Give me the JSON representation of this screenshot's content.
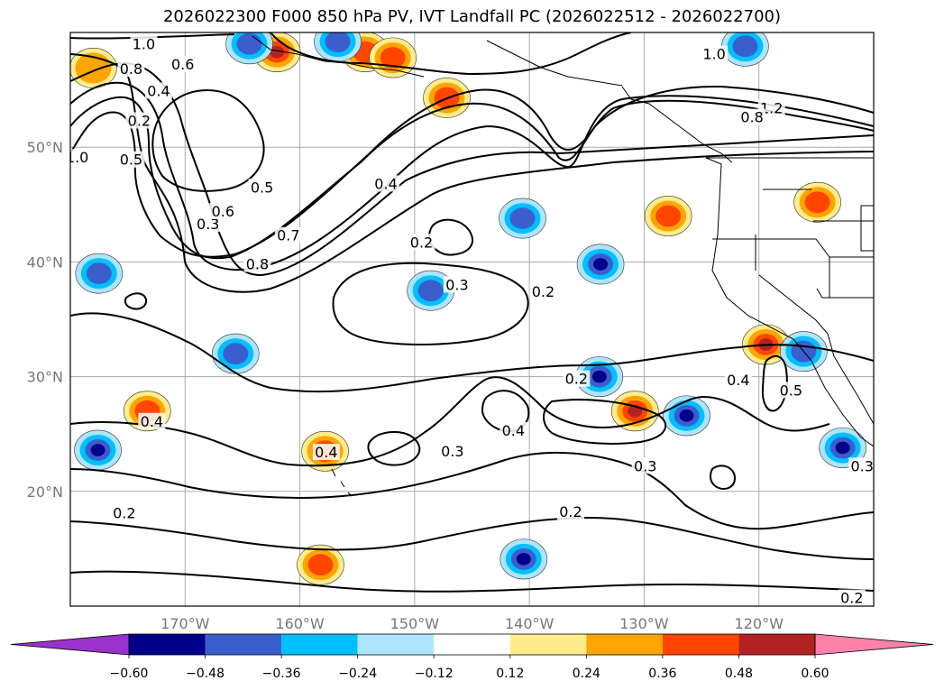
{
  "title": "2026022300 F000 850 hPa PV, IVT Landfall PC (2026022512 - 2026022700)",
  "map": {
    "projection": "PlateCarree",
    "extent_lon": [
      -180,
      -110
    ],
    "extent_lat": [
      10,
      60
    ],
    "lat_ticks": [
      {
        "value": 20,
        "label": "20°N"
      },
      {
        "value": 30,
        "label": "30°N"
      },
      {
        "value": 40,
        "label": "40°N"
      },
      {
        "value": 50,
        "label": "50°N"
      }
    ],
    "lon_ticks": [
      {
        "value": -170,
        "label": "170°W"
      },
      {
        "value": -160,
        "label": "160°W"
      },
      {
        "value": -150,
        "label": "150°W"
      },
      {
        "value": -140,
        "label": "140°W"
      },
      {
        "value": -130,
        "label": "130°W"
      },
      {
        "value": -120,
        "label": "120°W"
      }
    ],
    "gridlines": true,
    "gridline_color": "#aaaaaa",
    "contour_color": "#000000",
    "contour_labels": [
      {
        "text": "1.0",
        "lon": -173.6,
        "lat": 58.8
      },
      {
        "text": "0.8",
        "lon": -174.7,
        "lat": 56.6
      },
      {
        "text": "0.6",
        "lon": -170.2,
        "lat": 57.0
      },
      {
        "text": "0.4",
        "lon": -172.3,
        "lat": 54.7
      },
      {
        "text": "0.2",
        "lon": -174.0,
        "lat": 52.1
      },
      {
        "text": "0.5",
        "lon": -174.7,
        "lat": 48.7
      },
      {
        "text": "1.0",
        "lon": -179.4,
        "lat": 48.9
      },
      {
        "text": "0.3",
        "lon": -168.0,
        "lat": 43.1
      },
      {
        "text": "0.6",
        "lon": -166.7,
        "lat": 44.2
      },
      {
        "text": "0.5",
        "lon": -163.3,
        "lat": 46.3
      },
      {
        "text": "0.8",
        "lon": -163.7,
        "lat": 39.6
      },
      {
        "text": "0.7",
        "lon": -161.0,
        "lat": 42.1
      },
      {
        "text": "0.4",
        "lon": -152.5,
        "lat": 46.6
      },
      {
        "text": "0.2",
        "lon": -149.4,
        "lat": 41.5
      },
      {
        "text": "0.3",
        "lon": -146.3,
        "lat": 37.8
      },
      {
        "text": "0.2",
        "lon": -138.8,
        "lat": 37.2
      },
      {
        "text": "1.0",
        "lon": -123.9,
        "lat": 57.9
      },
      {
        "text": "1.2",
        "lon": -118.9,
        "lat": 53.2
      },
      {
        "text": "0.8",
        "lon": -120.6,
        "lat": 52.4
      },
      {
        "text": "0.2",
        "lon": -135.9,
        "lat": 29.6
      },
      {
        "text": "0.4",
        "lon": -141.4,
        "lat": 25.1
      },
      {
        "text": "0.3",
        "lon": -146.7,
        "lat": 23.3
      },
      {
        "text": "0.4",
        "lon": -157.7,
        "lat": 23.2
      },
      {
        "text": "0.4",
        "lon": -172.9,
        "lat": 25.9
      },
      {
        "text": "0.2",
        "lon": -175.3,
        "lat": 17.9
      },
      {
        "text": "0.3",
        "lon": -129.9,
        "lat": 22.0
      },
      {
        "text": "0.2",
        "lon": -136.4,
        "lat": 18.0
      },
      {
        "text": "0.4",
        "lon": -121.8,
        "lat": 29.5
      },
      {
        "text": "0.5",
        "lon": -117.2,
        "lat": 28.6
      },
      {
        "text": "0.3",
        "lon": -111.0,
        "lat": 22.0
      },
      {
        "text": "0.2",
        "lon": -111.9,
        "lat": 10.5
      }
    ]
  },
  "colorbar": {
    "ticks": [
      "−0.60",
      "−0.48",
      "−0.36",
      "−0.24",
      "−0.12",
      "0.12",
      "0.24",
      "0.36",
      "0.48",
      "0.60"
    ],
    "colors": [
      "#9932cc",
      "#00008b",
      "#3a5fcd",
      "#00bfff",
      "#ade5ff",
      "#ffffff",
      "#ffec8b",
      "#ffa500",
      "#ff4500",
      "#b22222",
      "#ff82ab"
    ],
    "extend": "both"
  },
  "chart_data": {
    "type": "heatmap",
    "title": "2026022300 F000 850 hPa PV, IVT Landfall PC (2026022512 - 2026022700)",
    "fields": [
      {
        "name": "850 hPa PV",
        "representation": "black contours",
        "levels": [
          0.2,
          0.3,
          0.4,
          0.5,
          0.6,
          0.7,
          0.8,
          1.0,
          1.2
        ]
      },
      {
        "name": "IVT Landfall PC",
        "representation": "filled shading",
        "levels": [
          -0.6,
          -0.48,
          -0.36,
          -0.24,
          -0.12,
          0.12,
          0.24,
          0.36,
          0.48,
          0.6
        ]
      }
    ],
    "x_range": [
      -180,
      -110
    ],
    "y_range": [
      10,
      60
    ],
    "shaded_features": [
      {
        "sign": "positive",
        "lon": -162,
        "lat": 58.3,
        "peak": 0.48
      },
      {
        "sign": "positive",
        "lon": -154.3,
        "lat": 58.3,
        "peak": 0.36
      },
      {
        "sign": "positive",
        "lon": -178,
        "lat": 56.9,
        "peak": 0.24
      },
      {
        "sign": "positive",
        "lon": -151.9,
        "lat": 57.8,
        "peak": 0.36
      },
      {
        "sign": "positive",
        "lon": -147.2,
        "lat": 54.3,
        "peak": 0.36
      },
      {
        "sign": "negative",
        "lon": -164.4,
        "lat": 59.0,
        "peak": -0.36
      },
      {
        "sign": "negative",
        "lon": -156.7,
        "lat": 59.2,
        "peak": -0.36
      },
      {
        "sign": "negative",
        "lon": -121.2,
        "lat": 58.8,
        "peak": -0.36
      },
      {
        "sign": "positive",
        "lon": -127.9,
        "lat": 44.0,
        "peak": 0.36
      },
      {
        "sign": "positive",
        "lon": -114.9,
        "lat": 45.2,
        "peak": 0.36
      },
      {
        "sign": "negative",
        "lon": -140.6,
        "lat": 43.8,
        "peak": -0.36
      },
      {
        "sign": "negative",
        "lon": -133.8,
        "lat": 39.8,
        "peak": -0.48
      },
      {
        "sign": "negative",
        "lon": -148.6,
        "lat": 37.5,
        "peak": -0.36
      },
      {
        "sign": "negative",
        "lon": -177.5,
        "lat": 39.0,
        "peak": -0.36
      },
      {
        "sign": "positive",
        "lon": -119.4,
        "lat": 32.8,
        "peak": 0.48
      },
      {
        "sign": "negative",
        "lon": -116.1,
        "lat": 32.2,
        "peak": -0.36
      },
      {
        "sign": "negative",
        "lon": -165.6,
        "lat": 32.0,
        "peak": -0.36
      },
      {
        "sign": "negative",
        "lon": -133.9,
        "lat": 30.0,
        "peak": -0.48
      },
      {
        "sign": "negative",
        "lon": -126.3,
        "lat": 26.6,
        "peak": -0.48
      },
      {
        "sign": "positive",
        "lon": -130.8,
        "lat": 27.0,
        "peak": 0.48
      },
      {
        "sign": "positive",
        "lon": -173.3,
        "lat": 27.0,
        "peak": 0.36
      },
      {
        "sign": "negative",
        "lon": -177.6,
        "lat": 23.6,
        "peak": -0.48
      },
      {
        "sign": "negative",
        "lon": -112.7,
        "lat": 23.8,
        "peak": -0.48
      },
      {
        "sign": "positive",
        "lon": -157.8,
        "lat": 23.5,
        "peak": 0.36
      },
      {
        "sign": "negative",
        "lon": -140.5,
        "lat": 14.1,
        "peak": -0.48
      },
      {
        "sign": "positive",
        "lon": -158.2,
        "lat": 13.6,
        "peak": 0.36
      }
    ]
  }
}
